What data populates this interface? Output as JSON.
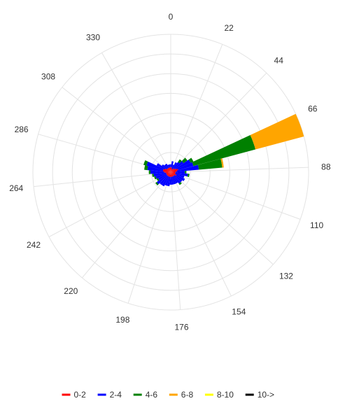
{
  "chart_data": {
    "type": "windrose",
    "radial_max": 4.4,
    "radial_grid_steps": 7,
    "direction_labels": [
      "0",
      "22",
      "44",
      "66",
      "88",
      "110",
      "132",
      "154",
      "176",
      "198",
      "220",
      "242",
      "264",
      "286",
      "308",
      "330"
    ],
    "bin_width_deg": 10,
    "series": [
      {
        "name": "0-2",
        "color": "#ff0000"
      },
      {
        "name": "2-4",
        "color": "#0000ff"
      },
      {
        "name": "4-6",
        "color": "#008000"
      },
      {
        "name": "6-8",
        "color": "#ffa500"
      },
      {
        "name": "8-10",
        "color": "#ffff00"
      },
      {
        "name": "10->",
        "color": "#000000"
      }
    ],
    "bins": [
      {
        "direction": 0,
        "values": [
          0.15,
          0.1,
          0,
          0,
          0,
          0
        ]
      },
      {
        "direction": 10,
        "values": [
          0.15,
          0.2,
          0,
          0,
          0,
          0
        ]
      },
      {
        "direction": 20,
        "values": [
          0.1,
          0.15,
          0,
          0,
          0,
          0
        ]
      },
      {
        "direction": 30,
        "values": [
          0.1,
          0.25,
          0,
          0,
          0,
          0
        ]
      },
      {
        "direction": 40,
        "values": [
          0.15,
          0.25,
          0.1,
          0,
          0,
          0
        ]
      },
      {
        "direction": 50,
        "values": [
          0.15,
          0.35,
          0.15,
          0,
          0,
          0
        ]
      },
      {
        "direction": 60,
        "values": [
          0.2,
          0.5,
          0.1,
          0,
          0,
          0
        ]
      },
      {
        "direction": 70,
        "values": [
          0.25,
          0.5,
          2.05,
          1.6,
          0,
          0
        ]
      },
      {
        "direction": 80,
        "values": [
          0.2,
          0.7,
          0.75,
          0.05,
          0,
          0
        ]
      },
      {
        "direction": 90,
        "values": [
          0.15,
          0.3,
          0.05,
          0,
          0,
          0
        ]
      },
      {
        "direction": 100,
        "values": [
          0.15,
          0.4,
          0.05,
          0,
          0,
          0
        ]
      },
      {
        "direction": 110,
        "values": [
          0.15,
          0.3,
          0,
          0,
          0,
          0
        ]
      },
      {
        "direction": 120,
        "values": [
          0.2,
          0.3,
          0,
          0,
          0,
          0
        ]
      },
      {
        "direction": 130,
        "values": [
          0.15,
          0.3,
          0,
          0,
          0,
          0
        ]
      },
      {
        "direction": 140,
        "values": [
          0.15,
          0.3,
          0.05,
          0,
          0,
          0
        ]
      },
      {
        "direction": 150,
        "values": [
          0.15,
          0.25,
          0,
          0,
          0,
          0
        ]
      },
      {
        "direction": 160,
        "values": [
          0.15,
          0.25,
          0,
          0,
          0,
          0
        ]
      },
      {
        "direction": 170,
        "values": [
          0.15,
          0.25,
          0,
          0,
          0,
          0
        ]
      },
      {
        "direction": 180,
        "values": [
          0.15,
          0.25,
          0,
          0,
          0,
          0
        ]
      },
      {
        "direction": 190,
        "values": [
          0.15,
          0.3,
          0,
          0,
          0,
          0
        ]
      },
      {
        "direction": 200,
        "values": [
          0.15,
          0.3,
          0,
          0,
          0,
          0
        ]
      },
      {
        "direction": 210,
        "values": [
          0.15,
          0.35,
          0,
          0,
          0,
          0
        ]
      },
      {
        "direction": 220,
        "values": [
          0.15,
          0.35,
          0,
          0,
          0,
          0
        ]
      },
      {
        "direction": 230,
        "values": [
          0.15,
          0.4,
          0.05,
          0,
          0,
          0
        ]
      },
      {
        "direction": 240,
        "values": [
          0.15,
          0.3,
          0.05,
          0,
          0,
          0
        ]
      },
      {
        "direction": 250,
        "values": [
          0.15,
          0.35,
          0.05,
          0,
          0,
          0
        ]
      },
      {
        "direction": 260,
        "values": [
          0.15,
          0.4,
          0.05,
          0,
          0,
          0
        ]
      },
      {
        "direction": 270,
        "values": [
          0.2,
          0.45,
          0.05,
          0,
          0,
          0
        ]
      },
      {
        "direction": 280,
        "values": [
          0.25,
          0.5,
          0.1,
          0,
          0,
          0
        ]
      },
      {
        "direction": 290,
        "values": [
          0.25,
          0.55,
          0.1,
          0,
          0,
          0
        ]
      },
      {
        "direction": 300,
        "values": [
          0.2,
          0.3,
          0,
          0,
          0,
          0
        ]
      },
      {
        "direction": 310,
        "values": [
          0.15,
          0.2,
          0,
          0,
          0,
          0
        ]
      },
      {
        "direction": 320,
        "values": [
          0.15,
          0.15,
          0,
          0,
          0,
          0
        ]
      },
      {
        "direction": 330,
        "values": [
          0.15,
          0.15,
          0,
          0,
          0,
          0
        ]
      },
      {
        "direction": 340,
        "values": [
          0.15,
          0.1,
          0,
          0,
          0,
          0
        ]
      },
      {
        "direction": 350,
        "values": [
          0.15,
          0.1,
          0,
          0,
          0,
          0
        ]
      }
    ],
    "grid": true,
    "legend_position": "bottom"
  }
}
